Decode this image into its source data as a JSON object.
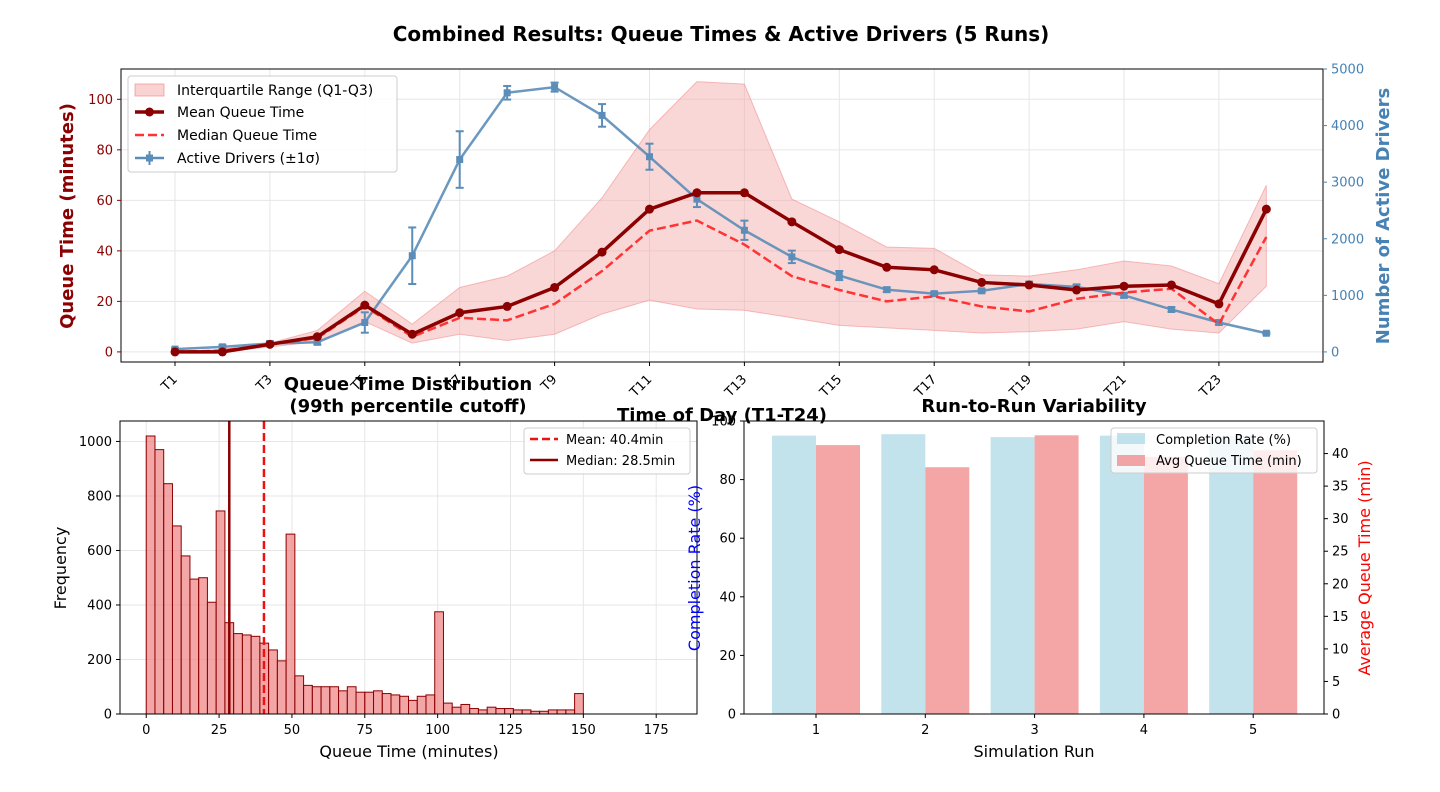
{
  "figure": {
    "title": "Combined Results: Queue Times & Active Drivers (5 Runs)"
  },
  "chart_data": [
    {
      "type": "line",
      "xlabel": "Time of Day (T1-T24)",
      "ylabel": "Queue Time (minutes)",
      "y2label": "Number of Active Drivers",
      "x": [
        "T1",
        "T2",
        "T3",
        "T4",
        "T5",
        "T6",
        "T7",
        "T8",
        "T9",
        "T10",
        "T11",
        "T12",
        "T13",
        "T14",
        "T15",
        "T16",
        "T17",
        "T18",
        "T19",
        "T20",
        "T21",
        "T22",
        "T23",
        "T24"
      ],
      "xticks_shown": [
        "T1",
        "T3",
        "T5",
        "T7",
        "T9",
        "T11",
        "T13",
        "T15",
        "T17",
        "T19",
        "T21",
        "T23"
      ],
      "ylim": [
        -4,
        112
      ],
      "yticks": [
        0,
        20,
        40,
        60,
        80,
        100
      ],
      "y2lim": [
        -178,
        5000
      ],
      "y2ticks": [
        0,
        1000,
        2000,
        3000,
        4000,
        5000
      ],
      "grid": true,
      "legend_position": "top-left",
      "series": [
        {
          "name": "Mean Queue Time",
          "color": "#8b0000",
          "axis": "left",
          "values": [
            0,
            0,
            3,
            6,
            18.5,
            7,
            15.5,
            18,
            25.5,
            39.5,
            56.5,
            63,
            63,
            51.5,
            40.5,
            33.5,
            32.5,
            27.5,
            26.5,
            24.5,
            26,
            26.5,
            19,
            56.5
          ]
        },
        {
          "name": "Median Queue Time",
          "color": "#ff3333",
          "axis": "left",
          "values": [
            0,
            0.5,
            3,
            5.5,
            18,
            6,
            13.5,
            12.5,
            19,
            32,
            48,
            52,
            42.5,
            30,
            24.5,
            20,
            22,
            18,
            16,
            21,
            23.5,
            25,
            11,
            45.5
          ]
        },
        {
          "name": "Interquartile Range (Q1-Q3)",
          "color": "#f08080",
          "axis": "left",
          "q1": [
            0,
            0,
            2,
            4,
            12,
            3.5,
            7,
            4.5,
            7,
            15,
            20.5,
            17,
            16.5,
            13.5,
            10.5,
            9.5,
            8.5,
            7.5,
            8,
            9,
            12,
            9,
            7.5,
            26
          ],
          "q3": [
            0,
            1,
            3.5,
            8.5,
            24,
            11,
            25.5,
            30,
            40,
            61,
            88,
            107,
            106,
            60.5,
            51.5,
            41.5,
            41,
            30.5,
            30,
            32.5,
            36,
            34,
            27,
            66
          ]
        },
        {
          "name": "Active Drivers (±1σ)",
          "color": "#5b8db8",
          "axis": "right",
          "values": [
            50,
            90,
            150,
            170,
            520,
            1700,
            3400,
            4580,
            4680,
            4180,
            3450,
            2700,
            2150,
            1680,
            1350,
            1100,
            1030,
            1080,
            1200,
            1150,
            1000,
            750,
            520,
            330
          ],
          "std": [
            20,
            30,
            40,
            40,
            180,
            500,
            500,
            120,
            80,
            200,
            230,
            140,
            170,
            110,
            80,
            40,
            30,
            30,
            40,
            40,
            40,
            40,
            40,
            20
          ]
        }
      ]
    },
    {
      "type": "bar",
      "title": "Queue Time Distribution\n(99th percentile cutoff)",
      "title_lines": [
        "Queue Time Distribution",
        "(99th percentile cutoff)"
      ],
      "xlabel": "Queue Time (minutes)",
      "ylabel": "Frequency",
      "xlim": [
        -9,
        189
      ],
      "xticks": [
        0,
        25,
        50,
        75,
        100,
        125,
        150,
        175
      ],
      "ylim": [
        0,
        1075
      ],
      "yticks": [
        0,
        200,
        400,
        600,
        800,
        1000
      ],
      "grid": true,
      "legend_position": "top-right",
      "bin_width": 3,
      "bin_start": 0,
      "values": [
        1020,
        970,
        845,
        690,
        580,
        495,
        500,
        410,
        745,
        335,
        295,
        290,
        285,
        260,
        235,
        195,
        660,
        140,
        105,
        100,
        100,
        100,
        85,
        100,
        80,
        80,
        85,
        75,
        70,
        65,
        50,
        65,
        70,
        375,
        40,
        25,
        35,
        20,
        15,
        25,
        20,
        20,
        15,
        15,
        10,
        10,
        15,
        15,
        15,
        75
      ],
      "mean": 40.4,
      "median": 28.5,
      "series": [
        {
          "name": "Mean: 40.4min",
          "color": "#ee1111"
        },
        {
          "name": "Median: 28.5min",
          "color": "#8b0000"
        }
      ]
    },
    {
      "type": "bar",
      "title": "Run-to-Run Variability",
      "xlabel": "Simulation Run",
      "ylabel": "Completion Rate (%)",
      "y2label": "Average Queue Time (min)",
      "categories": [
        "1",
        "2",
        "3",
        "4",
        "5"
      ],
      "ylim": [
        0,
        100
      ],
      "yticks": [
        0,
        20,
        40,
        60,
        80,
        100
      ],
      "y2lim": [
        0,
        45
      ],
      "y2ticks": [
        0,
        5,
        10,
        15,
        20,
        25,
        30,
        35,
        40
      ],
      "legend_position": "top-right",
      "series": [
        {
          "name": "Completion Rate (%)",
          "color": "#add8e6",
          "axis": "left",
          "values": [
            95,
            95.5,
            94.5,
            95,
            95
          ]
        },
        {
          "name": "Avg Queue Time (min)",
          "color": "#f08080",
          "axis": "right",
          "values": [
            41.3,
            37.9,
            42.8,
            39.5,
            40.5
          ]
        }
      ]
    }
  ]
}
